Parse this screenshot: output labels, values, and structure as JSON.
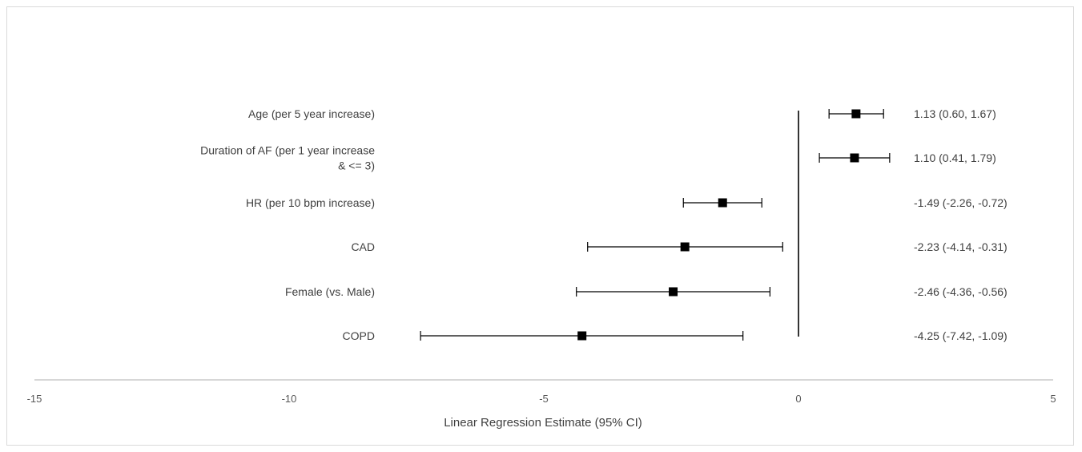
{
  "chart_data": {
    "type": "forest",
    "title": "",
    "xlabel": "Linear Regression Estimate (95% CI)",
    "xlim": [
      -15,
      5
    ],
    "xticks": [
      "-15",
      "-10",
      "-5",
      "0",
      "5"
    ],
    "reference_line": 0,
    "rows": [
      {
        "label_lines": [
          "Age (per 5 year increase)"
        ],
        "estimate": 1.13,
        "lower": 0.6,
        "upper": 1.67,
        "text": "1.13 (0.60, 1.67)"
      },
      {
        "label_lines": [
          "Duration of AF (per 1 year increase",
          "& <= 3)"
        ],
        "estimate": 1.1,
        "lower": 0.41,
        "upper": 1.79,
        "text": "1.10 (0.41, 1.79)"
      },
      {
        "label_lines": [
          "HR (per 10 bpm increase)"
        ],
        "estimate": -1.49,
        "lower": -2.26,
        "upper": -0.72,
        "text": "-1.49 (-2.26, -0.72)"
      },
      {
        "label_lines": [
          "CAD"
        ],
        "estimate": -2.23,
        "lower": -4.14,
        "upper": -0.31,
        "text": "-2.23 (-4.14, -0.31)"
      },
      {
        "label_lines": [
          "Female (vs. Male)"
        ],
        "estimate": -2.46,
        "lower": -4.36,
        "upper": -0.56,
        "text": "-2.46 (-4.36, -0.56)"
      },
      {
        "label_lines": [
          "COPD"
        ],
        "estimate": -4.25,
        "lower": -7.42,
        "upper": -1.09,
        "text": "-4.25 (-7.42, -1.09)"
      }
    ],
    "colors": {
      "marker": "#000000",
      "axis": "#bfbfbf",
      "reference": "#000000"
    }
  }
}
